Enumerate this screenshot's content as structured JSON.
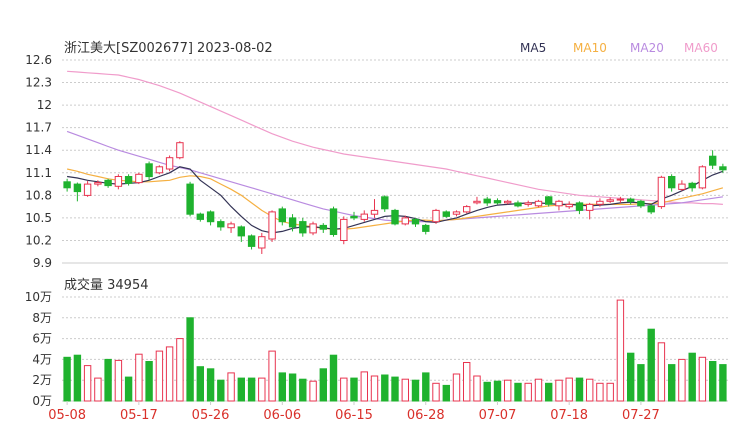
{
  "header": {
    "title": "浙江美大[SZ002677] 2023-08-02",
    "legend": [
      {
        "label": "MA5",
        "color": "#333355"
      },
      {
        "label": "MA10",
        "color": "#f5b042"
      },
      {
        "label": "MA20",
        "color": "#b98be0"
      },
      {
        "label": "MA60",
        "color": "#f09ccb"
      }
    ]
  },
  "volume_panel": {
    "label": "成交量 34954"
  },
  "colors": {
    "up": "#e8344f",
    "down": "#1fb22e",
    "grid": "#cccccc",
    "axis_text": "#333333",
    "date_text": "#d9302a"
  },
  "chart_data": [
    {
      "type": "candlestick",
      "title": "浙江美大[SZ002677] 2023-08-02",
      "ylim": [
        9.9,
        12.6
      ],
      "yticks": [
        "12.6",
        "12.3",
        "12",
        "11.7",
        "11.4",
        "11.1",
        "10.8",
        "10.5",
        "10.2",
        "9.9"
      ],
      "xticks": [
        "05-08",
        "05-17",
        "05-26",
        "06-06",
        "06-15",
        "06-28",
        "07-07",
        "07-18",
        "07-27"
      ],
      "xtick_index": [
        0,
        7,
        14,
        21,
        28,
        35,
        42,
        49,
        56
      ],
      "series": [
        {
          "name": "K",
          "candles": [
            [
              10.98,
              10.9,
              11.02,
              10.85
            ],
            [
              10.95,
              10.85,
              10.97,
              10.72
            ],
            [
              10.8,
              10.95,
              10.99,
              10.78
            ],
            [
              10.95,
              10.97,
              11.0,
              10.92
            ],
            [
              11.0,
              10.93,
              11.02,
              10.9
            ],
            [
              10.92,
              11.05,
              11.08,
              10.88
            ],
            [
              11.05,
              10.96,
              11.08,
              10.93
            ],
            [
              10.97,
              11.08,
              11.1,
              10.95
            ],
            [
              11.22,
              11.05,
              11.25,
              11.0
            ],
            [
              11.1,
              11.18,
              11.2,
              11.08
            ],
            [
              11.15,
              11.3,
              11.33,
              11.12
            ],
            [
              11.3,
              11.5,
              11.52,
              11.28
            ],
            [
              10.95,
              10.55,
              10.98,
              10.52
            ],
            [
              10.55,
              10.48,
              10.57,
              10.45
            ],
            [
              10.58,
              10.45,
              10.6,
              10.4
            ],
            [
              10.45,
              10.38,
              10.48,
              10.33
            ],
            [
              10.37,
              10.42,
              10.45,
              10.3
            ],
            [
              10.38,
              10.26,
              10.4,
              10.18
            ],
            [
              10.26,
              10.12,
              10.28,
              10.08
            ],
            [
              10.1,
              10.25,
              10.3,
              10.02
            ],
            [
              10.22,
              10.58,
              10.6,
              10.18
            ],
            [
              10.62,
              10.45,
              10.65,
              10.4
            ],
            [
              10.5,
              10.38,
              10.55,
              10.32
            ],
            [
              10.45,
              10.3,
              10.5,
              10.25
            ],
            [
              10.3,
              10.42,
              10.45,
              10.27
            ],
            [
              10.4,
              10.35,
              10.43,
              10.3
            ],
            [
              10.62,
              10.28,
              10.65,
              10.25
            ],
            [
              10.2,
              10.48,
              10.52,
              10.15
            ],
            [
              10.52,
              10.5,
              10.58,
              10.47
            ],
            [
              10.48,
              10.55,
              10.6,
              10.45
            ],
            [
              10.55,
              10.6,
              10.75,
              10.5
            ],
            [
              10.78,
              10.62,
              10.8,
              10.58
            ],
            [
              10.6,
              10.42,
              10.62,
              10.4
            ],
            [
              10.42,
              10.5,
              10.53,
              10.4
            ],
            [
              10.48,
              10.42,
              10.5,
              10.38
            ],
            [
              10.4,
              10.32,
              10.42,
              10.28
            ],
            [
              10.45,
              10.6,
              10.62,
              10.42
            ],
            [
              10.58,
              10.52,
              10.6,
              10.5
            ],
            [
              10.55,
              10.58,
              10.6,
              10.52
            ],
            [
              10.58,
              10.65,
              10.67,
              10.56
            ],
            [
              10.7,
              10.72,
              10.78,
              10.68
            ],
            [
              10.75,
              10.7,
              10.78,
              10.66
            ],
            [
              10.73,
              10.7,
              10.76,
              10.68
            ],
            [
              10.7,
              10.72,
              10.74,
              10.68
            ],
            [
              10.7,
              10.66,
              10.73,
              10.64
            ],
            [
              10.68,
              10.7,
              10.73,
              10.65
            ],
            [
              10.66,
              10.72,
              10.74,
              10.64
            ],
            [
              10.78,
              10.68,
              10.79,
              10.65
            ],
            [
              10.66,
              10.72,
              10.74,
              10.6
            ],
            [
              10.65,
              10.68,
              10.72,
              10.62
            ],
            [
              10.7,
              10.6,
              10.72,
              10.55
            ],
            [
              10.6,
              10.68,
              10.7,
              10.48
            ],
            [
              10.68,
              10.72,
              10.76,
              10.65
            ],
            [
              10.72,
              10.74,
              10.77,
              10.7
            ],
            [
              10.74,
              10.75,
              10.78,
              10.7
            ],
            [
              10.75,
              10.72,
              10.77,
              10.68
            ],
            [
              10.72,
              10.66,
              10.74,
              10.63
            ],
            [
              10.66,
              10.58,
              10.68,
              10.55
            ],
            [
              10.65,
              11.04,
              11.06,
              10.62
            ],
            [
              11.05,
              10.9,
              11.08,
              10.85
            ],
            [
              10.88,
              10.95,
              11.0,
              10.86
            ],
            [
              10.96,
              10.9,
              10.98,
              10.85
            ],
            [
              10.9,
              11.18,
              11.2,
              10.88
            ],
            [
              11.32,
              11.2,
              11.4,
              11.15
            ],
            [
              11.18,
              11.14,
              11.22,
              11.1
            ]
          ]
        },
        {
          "name": "MA5",
          "values": [
            11.05,
            11.03,
            11.0,
            10.98,
            10.96,
            10.95,
            10.96,
            10.97,
            11.0,
            11.05,
            11.1,
            11.18,
            11.15,
            11.0,
            10.9,
            10.8,
            10.65,
            10.52,
            10.4,
            10.33,
            10.3,
            10.32,
            10.36,
            10.38,
            10.38,
            10.37,
            10.35,
            10.36,
            10.4,
            10.44,
            10.48,
            10.52,
            10.53,
            10.52,
            10.49,
            10.45,
            10.44,
            10.47,
            10.5,
            10.55,
            10.6,
            10.64,
            10.67,
            10.68,
            10.69,
            10.7,
            10.7,
            10.69,
            10.68,
            10.68,
            10.67,
            10.66,
            10.67,
            10.68,
            10.7,
            10.71,
            10.7,
            10.68,
            10.75,
            10.8,
            10.86,
            10.92,
            11.0,
            11.07,
            11.12
          ]
        },
        {
          "name": "MA10",
          "values": [
            11.15,
            11.12,
            11.08,
            11.05,
            11.02,
            11.0,
            10.99,
            10.98,
            10.98,
            10.99,
            11.0,
            11.04,
            11.06,
            11.05,
            11.02,
            10.95,
            10.88,
            10.8,
            10.7,
            10.6,
            10.52,
            10.45,
            10.42,
            10.4,
            10.38,
            10.36,
            10.35,
            10.35,
            10.36,
            10.38,
            10.4,
            10.42,
            10.44,
            10.46,
            10.47,
            10.47,
            10.46,
            10.47,
            10.48,
            10.5,
            10.52,
            10.54,
            10.56,
            10.58,
            10.6,
            10.62,
            10.64,
            10.66,
            10.67,
            10.68,
            10.68,
            10.68,
            10.68,
            10.68,
            10.68,
            10.68,
            10.69,
            10.69,
            10.7,
            10.73,
            10.76,
            10.79,
            10.82,
            10.86,
            10.9
          ]
        },
        {
          "name": "MA20",
          "values": [
            11.65,
            11.6,
            11.55,
            11.5,
            11.45,
            11.4,
            11.36,
            11.32,
            11.28,
            11.24,
            11.2,
            11.17,
            11.14,
            11.1,
            11.06,
            11.02,
            10.98,
            10.94,
            10.9,
            10.86,
            10.82,
            10.78,
            10.74,
            10.7,
            10.66,
            10.62,
            10.59,
            10.56,
            10.53,
            10.51,
            10.49,
            10.47,
            10.46,
            10.45,
            10.45,
            10.45,
            10.46,
            10.47,
            10.48,
            10.49,
            10.5,
            10.51,
            10.52,
            10.53,
            10.54,
            10.55,
            10.56,
            10.57,
            10.58,
            10.59,
            10.6,
            10.61,
            10.62,
            10.63,
            10.64,
            10.65,
            10.66,
            10.67,
            10.68,
            10.69,
            10.7,
            10.72,
            10.74,
            10.76,
            10.78
          ]
        },
        {
          "name": "MA60",
          "values": [
            12.45,
            12.44,
            12.43,
            12.42,
            12.41,
            12.4,
            12.37,
            12.34,
            12.3,
            12.26,
            12.21,
            12.16,
            12.1,
            12.04,
            11.98,
            11.92,
            11.86,
            11.8,
            11.74,
            11.68,
            11.62,
            11.57,
            11.52,
            11.48,
            11.44,
            11.41,
            11.38,
            11.35,
            11.33,
            11.31,
            11.29,
            11.27,
            11.25,
            11.23,
            11.21,
            11.19,
            11.17,
            11.15,
            11.12,
            11.09,
            11.06,
            11.03,
            11.0,
            10.97,
            10.94,
            10.91,
            10.88,
            10.86,
            10.84,
            10.82,
            10.8,
            10.79,
            10.78,
            10.77,
            10.76,
            10.75,
            10.74,
            10.73,
            10.72,
            10.71,
            10.7,
            10.7,
            10.69,
            10.69,
            10.68
          ]
        }
      ]
    },
    {
      "type": "bar",
      "title": "成交量 34954",
      "ylim": [
        0,
        100000
      ],
      "yticks": [
        "10万",
        "8万",
        "6万",
        "4万",
        "2万",
        "0万"
      ],
      "values": [
        42000,
        44000,
        34000,
        22000,
        40000,
        39000,
        23000,
        45000,
        38000,
        48000,
        52000,
        60000,
        80000,
        33000,
        31000,
        20000,
        27000,
        22000,
        22000,
        22000,
        48000,
        27000,
        26000,
        21000,
        19000,
        31000,
        44000,
        22000,
        22000,
        28000,
        24000,
        25000,
        23000,
        21000,
        20000,
        27000,
        17000,
        15000,
        26000,
        37000,
        24000,
        18000,
        19000,
        20000,
        17000,
        17000,
        21000,
        17000,
        20000,
        22000,
        22000,
        21000,
        17000,
        17000,
        97000,
        46000,
        35000,
        69000,
        56000,
        35000,
        40000,
        46000,
        42000,
        38000,
        34954
      ]
    }
  ]
}
